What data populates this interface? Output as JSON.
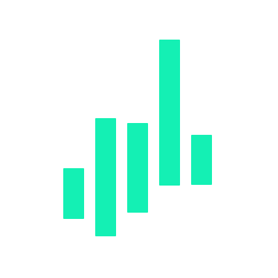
{
  "logo": {
    "icon": "bar-graph-logo-icon",
    "color": "#14f0b4"
  }
}
